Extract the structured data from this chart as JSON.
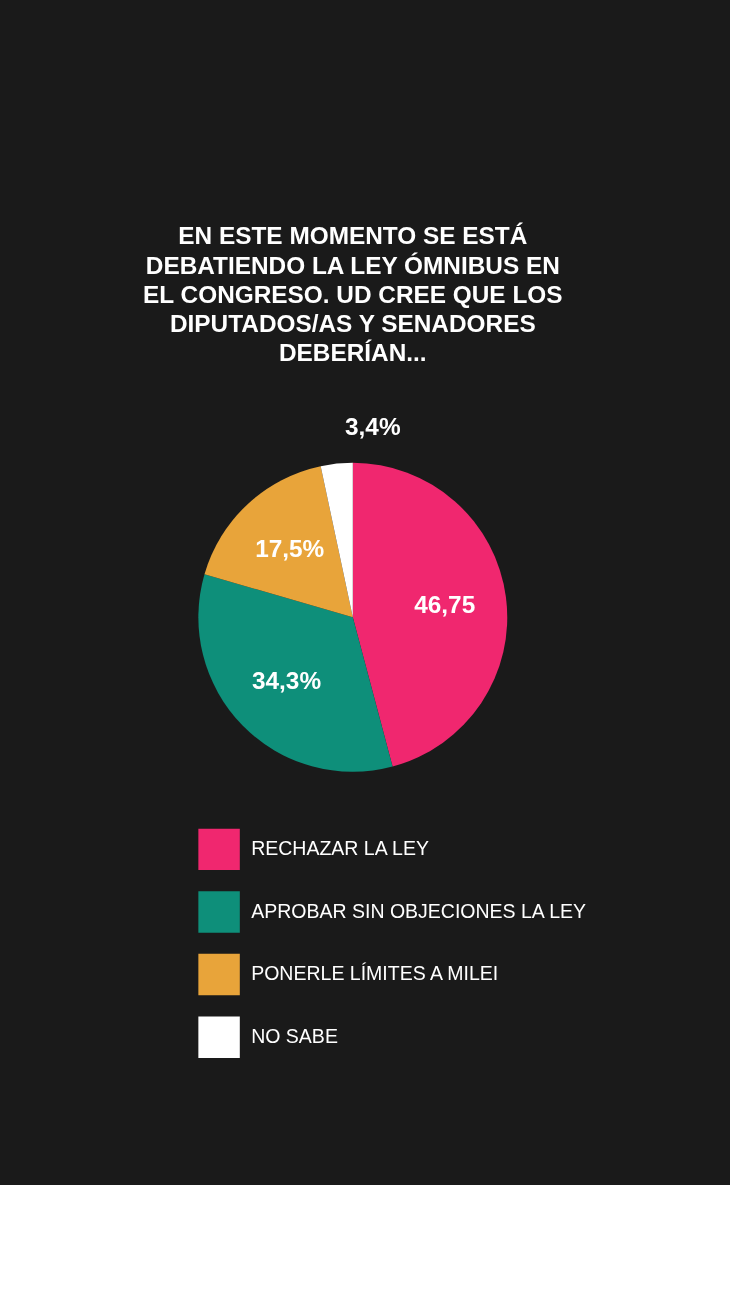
{
  "chart_data": {
    "type": "pie",
    "title": "EN ESTE MOMENTO SE ESTÁ DEBATIENDO LA LEY ÓMNIBUS EN EL CONGRESO. UD CREE QUE LOS DIPUTADOS/AS Y SENADORES DEBERÍAN...",
    "categories": [
      "RECHAZAR LA LEY",
      "APROBAR SIN OBJECIONES LA LEY",
      "PONERLE LÍMITES A MILEI",
      "NO SABE"
    ],
    "values": [
      46.75,
      34.3,
      17.5,
      3.4
    ],
    "value_labels": [
      "46,75",
      "34,3%",
      "17,5%",
      "3,4%"
    ],
    "colors": [
      "#f0276f",
      "#0e8f7a",
      "#e8a43a",
      "#ffffff"
    ],
    "legend": "bottom"
  }
}
